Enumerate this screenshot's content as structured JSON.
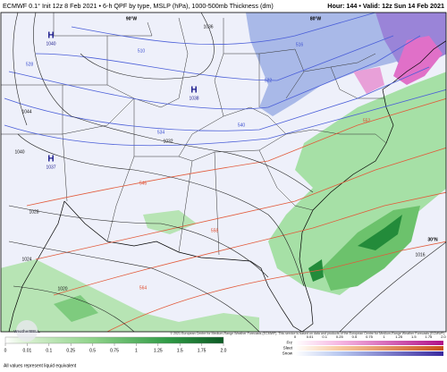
{
  "header": {
    "left": "ECMWF 0.1° Init 12z 8 Feb 2021 • 6-h QPF by type, MSLP (hPa), 1000-500mb Thickness (dm)",
    "right": "Hour: 144 • Valid: 12z Sun 14 Feb 2021"
  },
  "map": {
    "highs": [
      {
        "symbol": "H",
        "pressure": "1040"
      },
      {
        "symbol": "H",
        "pressure": "1038"
      },
      {
        "symbol": "H",
        "pressure": "1037"
      }
    ],
    "thickness_labels": [
      "510",
      "516",
      "522",
      "528",
      "534",
      "540",
      "546",
      "552",
      "558",
      "564"
    ],
    "isobar_labels": [
      "1044",
      "1040",
      "1036",
      "1032",
      "1028",
      "1024",
      "1020",
      "1016"
    ],
    "graticule_labels": [
      "90°W",
      "80°W",
      "30°N"
    ]
  },
  "legend": {
    "rain_ticks": [
      "0",
      "0.01",
      "0.1",
      "0.25",
      "0.5",
      "0.75",
      "1",
      "1.25",
      "1.5",
      "1.75",
      "2.0"
    ],
    "note": "All values represent liquid equivalent",
    "types": [
      "Frz",
      "Sleet",
      "Snow"
    ],
    "type_ticks": [
      "0",
      "0.01",
      "0.1",
      "0.25",
      "0.5",
      "0.75",
      "1",
      "1.25",
      "1.5",
      "1.75",
      "2.0"
    ]
  },
  "footer": {
    "copyright": "© 2021 European Centre for Medium-Range Weather Forecasts (ECMWF). This service is based on data and products of the European Centre for Medium-Range Weather Forecasts (ECMWF).",
    "logo": "WeatherBELL"
  }
}
